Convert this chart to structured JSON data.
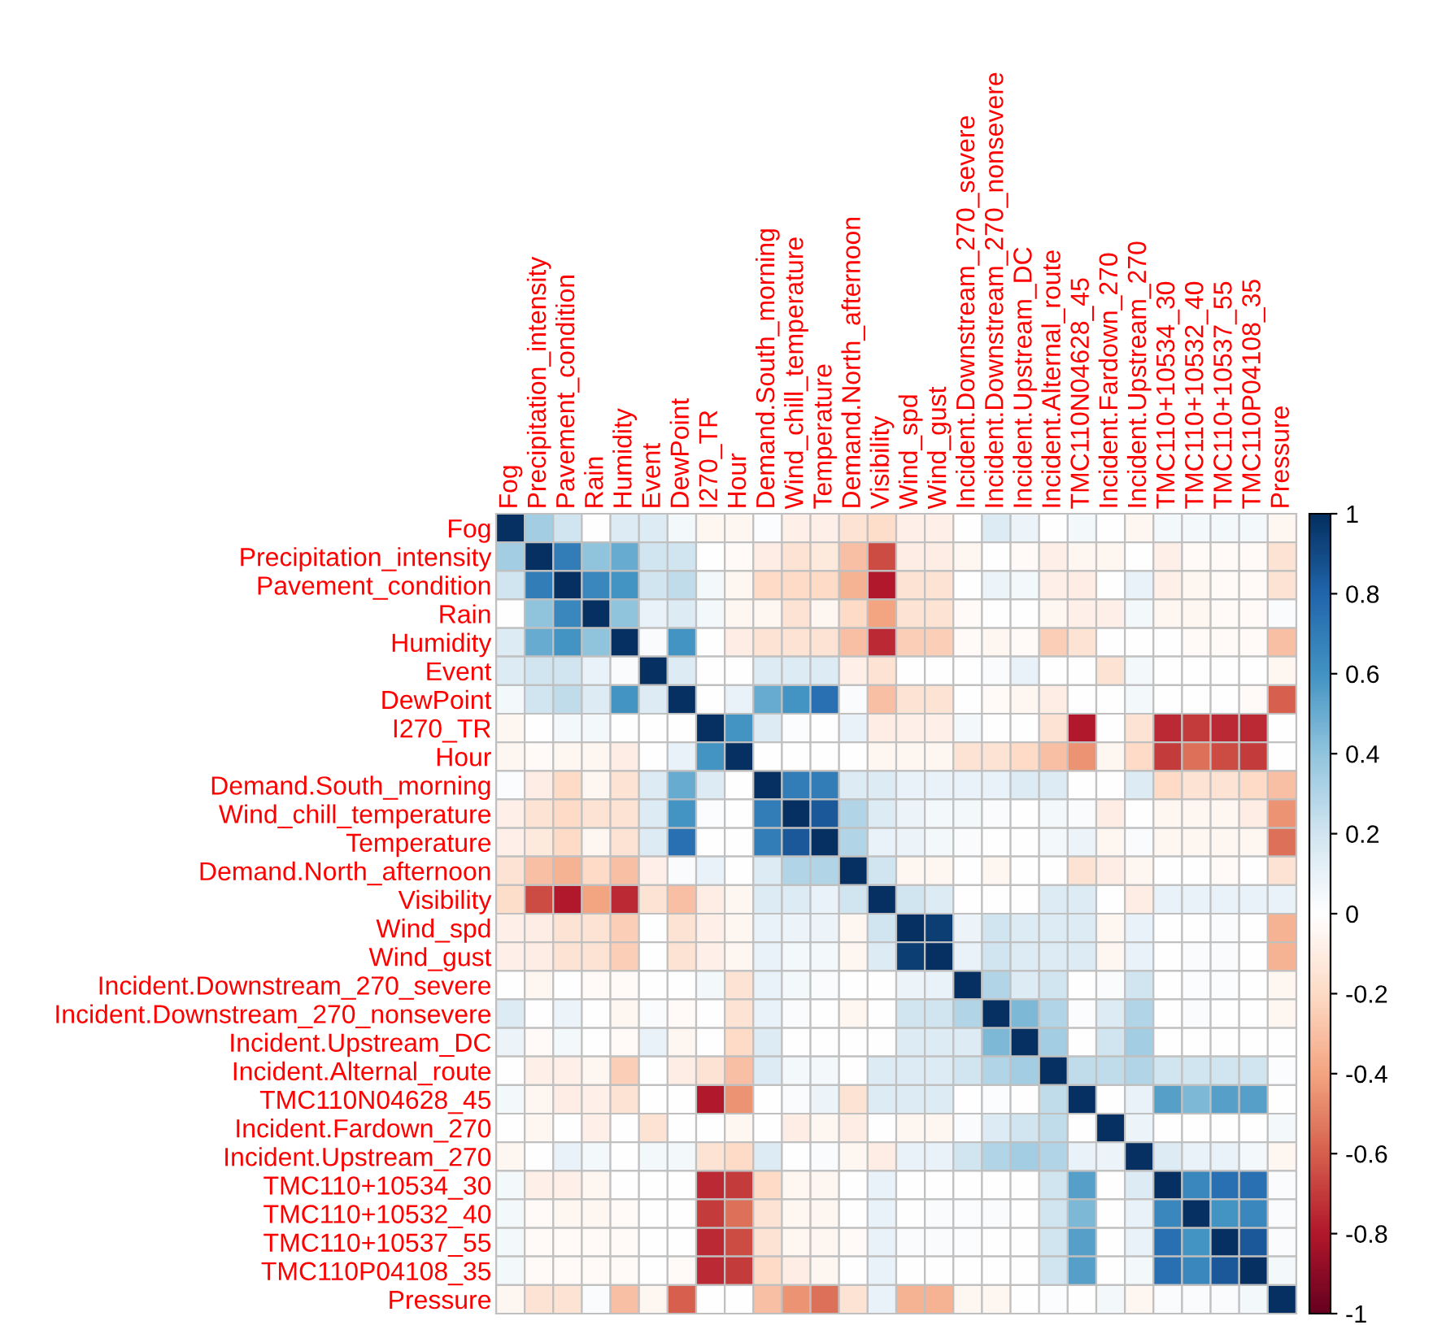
{
  "chart_data": {
    "type": "heatmap",
    "categories": [
      "Fog",
      "Precipitation_intensity",
      "Pavement_condition",
      "Rain",
      "Humidity",
      "Event",
      "DewPoint",
      "I270_TR",
      "Hour",
      "Demand.South_morning",
      "Wind_chill_temperature",
      "Temperature",
      "Demand.North_afternoon",
      "Visibility",
      "Wind_spd",
      "Wind_gust",
      "Incident.Downstream_270_severe",
      "Incident.Downstream_270_nonsevere",
      "Incident.Upstream_DC",
      "Incident.Alternal_route",
      "TMC110N04628_45",
      "Incident.Fardown_270",
      "Incident.Upstream_270",
      "TMC110+10534_30",
      "TMC110+10532_40",
      "TMC110+10537_55",
      "TMC110P04108_35",
      "Pressure"
    ],
    "y_categories": [
      "Fog",
      "Precipitation_intensity",
      "Pavement_condition",
      "Rain",
      "Humidity",
      "Event",
      "DewPoint",
      "I270_TR",
      "Hour",
      "Demand.South_morning",
      "Wind_chill_temperature",
      "Temperature",
      "Demand.North_afternoon",
      "Visibility",
      "Wind_spd",
      "Wind_gust",
      "Incident.Downstream_270_severe",
      "Incident.Downstream_270_nonsevere",
      "Incident.Upstream_DC",
      "Incident.Alternal_route",
      "TMC110N04628_45",
      "Incident.Fardown_270",
      "Incident.Upstream_270",
      "TMC110+10534_30",
      "TMC110+10532_40",
      "TMC110+10537_55",
      "TMC110P04108_35",
      "Pressure"
    ],
    "cells": [
      [
        1,
        0.35,
        0.2,
        0,
        0.15,
        0.15,
        0.05,
        -0.05,
        -0.05,
        0.02,
        -0.08,
        -0.08,
        -0.15,
        -0.18,
        -0.08,
        -0.08,
        0,
        0.15,
        0.08,
        0,
        0.05,
        0,
        -0.05,
        0.05,
        0.05,
        0.05,
        0.05,
        -0.05
      ],
      [
        0.35,
        1,
        0.7,
        0.4,
        0.5,
        0.2,
        0.2,
        0,
        -0.03,
        -0.1,
        -0.15,
        -0.12,
        -0.3,
        -0.65,
        -0.1,
        -0.1,
        -0.05,
        0,
        -0.03,
        -0.08,
        -0.05,
        -0.05,
        0,
        -0.08,
        -0.03,
        -0.03,
        -0.03,
        -0.15
      ],
      [
        0.2,
        0.7,
        1,
        0.65,
        0.6,
        0.2,
        0.25,
        0.05,
        -0.05,
        -0.2,
        -0.2,
        -0.2,
        -0.35,
        -0.8,
        -0.15,
        -0.15,
        0,
        0.08,
        0.05,
        -0.08,
        -0.1,
        0,
        0.1,
        -0.08,
        -0.05,
        -0.03,
        -0.03,
        -0.15
      ],
      [
        0,
        0.4,
        0.65,
        1,
        0.4,
        0.1,
        0.15,
        0.05,
        -0.05,
        -0.05,
        -0.15,
        -0.05,
        -0.2,
        -0.4,
        -0.15,
        -0.15,
        -0.03,
        0,
        0,
        -0.05,
        -0.08,
        -0.08,
        0.05,
        -0.05,
        -0.05,
        -0.03,
        -0.03,
        0.03
      ],
      [
        0.15,
        0.5,
        0.6,
        0.4,
        1,
        0.03,
        0.6,
        0,
        -0.1,
        -0.15,
        -0.15,
        -0.15,
        -0.3,
        -0.75,
        -0.25,
        -0.25,
        -0.03,
        -0.05,
        -0.03,
        -0.25,
        -0.15,
        0,
        0,
        0,
        -0.03,
        -0.03,
        -0.03,
        -0.3
      ],
      [
        0.15,
        0.2,
        0.2,
        0.1,
        0.03,
        1,
        0.15,
        0,
        0,
        0.15,
        0.15,
        0.15,
        -0.08,
        -0.15,
        0,
        0,
        0,
        0.03,
        0.1,
        0,
        0,
        -0.15,
        0.05,
        0,
        0,
        0,
        0,
        -0.05
      ],
      [
        0.05,
        0.2,
        0.25,
        0.15,
        0.6,
        0.15,
        1,
        0,
        0.1,
        0.5,
        0.6,
        0.75,
        0.03,
        -0.3,
        -0.15,
        -0.15,
        0,
        -0.03,
        -0.05,
        -0.1,
        0,
        0,
        0.05,
        0,
        0,
        0,
        -0.03,
        -0.6
      ],
      [
        -0.05,
        0,
        0.05,
        0.05,
        0,
        0,
        0,
        1,
        0.6,
        0.15,
        0.02,
        0,
        0.1,
        -0.1,
        -0.08,
        -0.08,
        0.05,
        0,
        0,
        -0.15,
        -0.8,
        0,
        -0.15,
        -0.75,
        -0.7,
        -0.75,
        -0.75,
        0
      ],
      [
        -0.05,
        -0.03,
        -0.05,
        -0.05,
        -0.1,
        0,
        0.1,
        0.6,
        1,
        0,
        0,
        0,
        0,
        -0.05,
        -0.05,
        -0.05,
        -0.15,
        -0.15,
        -0.2,
        -0.3,
        -0.45,
        -0.05,
        -0.2,
        -0.7,
        -0.55,
        -0.65,
        -0.7,
        0
      ],
      [
        0.02,
        -0.1,
        -0.2,
        -0.05,
        -0.15,
        0.15,
        0.5,
        0.15,
        0,
        1,
        0.7,
        0.7,
        0.15,
        0.15,
        0.1,
        0.1,
        0.1,
        0.1,
        0.15,
        0.15,
        0,
        0,
        0.15,
        -0.2,
        -0.15,
        -0.15,
        -0.2,
        -0.3
      ],
      [
        -0.08,
        -0.15,
        -0.2,
        -0.15,
        -0.15,
        0.15,
        0.6,
        0.02,
        0,
        0.7,
        1,
        0.85,
        0.3,
        0.15,
        0.08,
        0.05,
        0.05,
        0.03,
        0,
        0.05,
        0.03,
        -0.1,
        0,
        -0.05,
        -0.05,
        -0.05,
        -0.1,
        -0.45
      ],
      [
        -0.08,
        -0.12,
        -0.2,
        -0.05,
        -0.15,
        0.15,
        0.75,
        0,
        0,
        0.7,
        0.85,
        1,
        0.3,
        0.1,
        0.08,
        0.05,
        0.03,
        0,
        0,
        0.05,
        0.08,
        -0.05,
        0.03,
        -0.05,
        -0.05,
        -0.05,
        -0.05,
        -0.55
      ],
      [
        -0.15,
        -0.3,
        -0.35,
        -0.2,
        -0.3,
        -0.08,
        0.03,
        0.1,
        0,
        0.15,
        0.3,
        0.3,
        1,
        0.2,
        -0.05,
        -0.05,
        0,
        -0.05,
        0,
        0,
        -0.15,
        -0.1,
        -0.05,
        0,
        0,
        -0.03,
        0,
        -0.15
      ],
      [
        -0.18,
        -0.65,
        -0.8,
        -0.4,
        -0.75,
        -0.15,
        -0.3,
        -0.1,
        -0.05,
        0.15,
        0.15,
        0.1,
        0.2,
        1,
        0.2,
        0.15,
        0,
        0,
        0,
        0.15,
        0.15,
        0,
        -0.1,
        0.1,
        0.1,
        0.1,
        0.1,
        0.1
      ],
      [
        -0.08,
        -0.1,
        -0.15,
        -0.15,
        -0.25,
        0,
        -0.15,
        -0.08,
        -0.05,
        0.1,
        0.08,
        0.08,
        -0.05,
        0.2,
        1,
        0.95,
        0.08,
        0.2,
        0.15,
        0.15,
        0.15,
        -0.05,
        0.1,
        0,
        0,
        0.03,
        0,
        -0.35
      ],
      [
        -0.08,
        -0.1,
        -0.15,
        -0.15,
        -0.25,
        0,
        -0.15,
        -0.08,
        -0.05,
        0.1,
        0.05,
        0.05,
        -0.05,
        0.15,
        0.95,
        1,
        0.1,
        0.2,
        0.15,
        0.15,
        0.15,
        -0.05,
        0.1,
        0,
        0.03,
        0.03,
        0,
        -0.35
      ],
      [
        0,
        -0.05,
        0,
        -0.03,
        -0.03,
        0,
        0,
        0.05,
        -0.15,
        0.1,
        0.05,
        0.03,
        0,
        0,
        0.08,
        0.1,
        1,
        0.3,
        0.15,
        0.2,
        0,
        0.03,
        0.2,
        0,
        0.02,
        0.02,
        0,
        -0.05
      ],
      [
        0.15,
        0,
        0.08,
        0,
        -0.05,
        0.03,
        -0.03,
        0,
        -0.15,
        0.1,
        0.03,
        0,
        -0.05,
        0,
        0.2,
        0.2,
        0.3,
        1,
        0.45,
        0.3,
        0.02,
        0.15,
        0.3,
        0,
        0.03,
        0,
        0,
        -0.05
      ],
      [
        0.08,
        -0.03,
        0.05,
        0,
        -0.03,
        0.1,
        -0.05,
        0,
        -0.2,
        0.15,
        0,
        0,
        0,
        0,
        0.15,
        0.15,
        0.15,
        0.45,
        1,
        0.35,
        0,
        0.2,
        0.35,
        0,
        0,
        0,
        0,
        0
      ],
      [
        0,
        -0.08,
        -0.08,
        -0.05,
        -0.25,
        0,
        -0.1,
        -0.15,
        -0.3,
        0.15,
        0.05,
        0.05,
        0,
        0.15,
        0.15,
        0.15,
        0.2,
        0.3,
        0.35,
        1,
        0.25,
        0.25,
        0.3,
        0.2,
        0.2,
        0.2,
        0.2,
        0.02
      ],
      [
        0.05,
        -0.05,
        -0.1,
        -0.08,
        -0.15,
        0,
        0,
        -0.8,
        -0.45,
        0,
        0.03,
        0.08,
        -0.15,
        0.15,
        0.15,
        0.15,
        0,
        0.02,
        0,
        0.25,
        1,
        0,
        0.1,
        0.55,
        0.45,
        0.55,
        0.55,
        0
      ],
      [
        0,
        -0.05,
        0,
        -0.08,
        0,
        -0.15,
        0,
        0,
        -0.05,
        0,
        -0.1,
        -0.05,
        -0.1,
        0,
        -0.05,
        -0.05,
        0.03,
        0.15,
        0.2,
        0.25,
        0,
        1,
        0.08,
        0,
        0,
        0,
        0,
        0.05
      ],
      [
        -0.05,
        0,
        0.1,
        0.05,
        0,
        0.05,
        0.05,
        -0.15,
        -0.2,
        0.15,
        0,
        0.03,
        -0.05,
        -0.1,
        0.1,
        0.1,
        0.2,
        0.3,
        0.35,
        0.3,
        0.1,
        0.08,
        1,
        0.15,
        0.1,
        0.1,
        0.05,
        -0.05
      ],
      [
        0.05,
        -0.08,
        -0.08,
        -0.05,
        0,
        0,
        0,
        -0.75,
        -0.7,
        -0.2,
        -0.05,
        -0.05,
        0,
        0.1,
        0,
        0,
        0,
        0,
        0,
        0.2,
        0.55,
        0,
        0.15,
        1,
        0.65,
        0.75,
        0.75,
        0.03
      ],
      [
        0.05,
        -0.03,
        -0.05,
        -0.05,
        -0.03,
        0,
        0,
        -0.7,
        -0.55,
        -0.15,
        -0.05,
        -0.05,
        0,
        0.1,
        0,
        0.03,
        0.02,
        0.03,
        0,
        0.2,
        0.45,
        0,
        0.1,
        0.65,
        1,
        0.6,
        0.65,
        0.03
      ],
      [
        0.05,
        -0.03,
        -0.03,
        -0.03,
        -0.03,
        0,
        0,
        -0.75,
        -0.65,
        -0.15,
        -0.05,
        -0.05,
        -0.03,
        0.1,
        0.03,
        0.03,
        0.02,
        0,
        0,
        0.2,
        0.55,
        0,
        0.1,
        0.75,
        0.6,
        1,
        0.85,
        0.03
      ],
      [
        0.05,
        -0.03,
        -0.03,
        -0.03,
        -0.03,
        0,
        -0.03,
        -0.75,
        -0.7,
        -0.2,
        -0.1,
        -0.05,
        0,
        0.1,
        0,
        0,
        0,
        0,
        0,
        0.2,
        0.55,
        0,
        0.05,
        0.75,
        0.65,
        0.85,
        1,
        0.05
      ],
      [
        -0.05,
        -0.15,
        -0.15,
        0.03,
        -0.3,
        -0.05,
        -0.6,
        0,
        0,
        -0.3,
        -0.45,
        -0.55,
        -0.15,
        0.1,
        -0.35,
        -0.35,
        -0.05,
        -0.05,
        0,
        0.02,
        0,
        0.05,
        -0.05,
        0.03,
        0.03,
        0.03,
        0.05,
        1
      ]
    ],
    "clim": [
      -1,
      1
    ],
    "cticks": [
      -1,
      -0.8,
      -0.6,
      -0.4,
      -0.2,
      0,
      0.2,
      0.4,
      0.6,
      0.8,
      1
    ]
  }
}
